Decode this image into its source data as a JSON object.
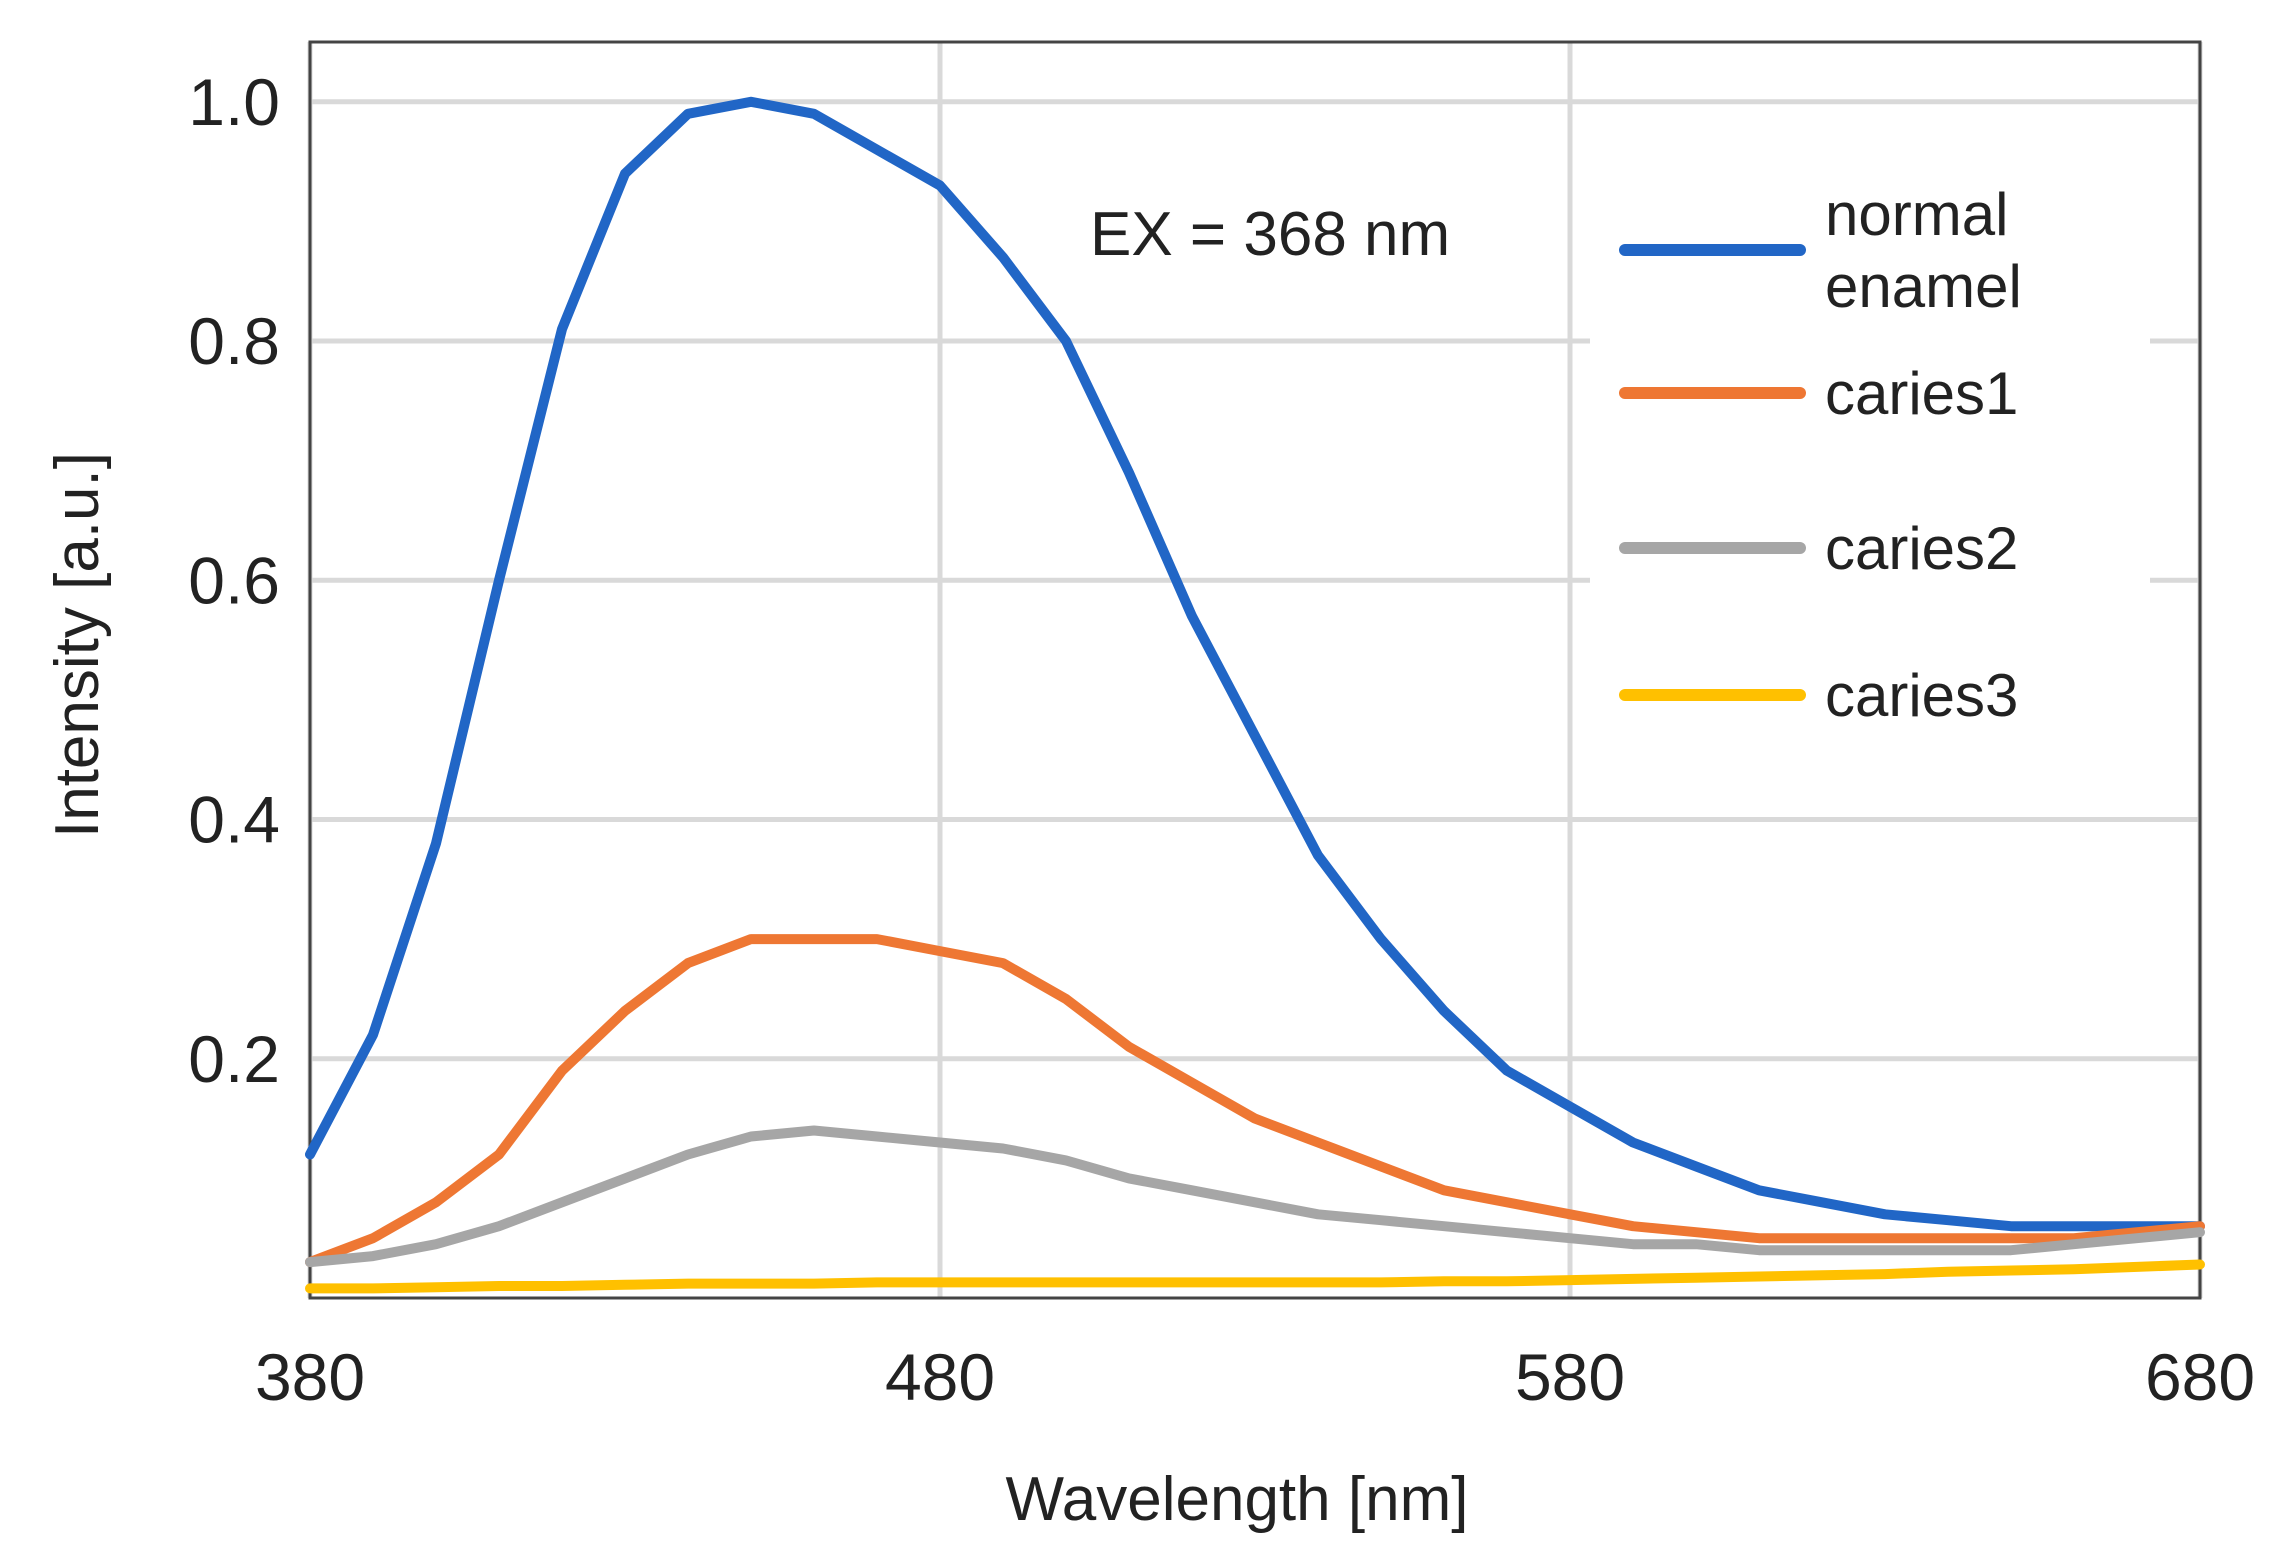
{
  "chart_data": {
    "type": "line",
    "title": "",
    "xlabel": "Wavelength [nm]",
    "ylabel": "Intensity [a.u.]",
    "xlim": [
      380,
      680
    ],
    "ylim": [
      0,
      1.05
    ],
    "xticks": [
      380,
      480,
      580,
      680
    ],
    "xtick_labels": [
      "380",
      "480",
      "580",
      "680"
    ],
    "yticks": [
      0.2,
      0.4,
      0.6,
      0.8,
      1.0
    ],
    "ytick_labels": [
      "0.2",
      "0.4",
      "0.6",
      "0.8",
      "1.0"
    ],
    "grid": true,
    "legend_position": "top-right",
    "annotation": "EX = 368 nm",
    "x": [
      380,
      390,
      400,
      410,
      420,
      430,
      440,
      450,
      460,
      470,
      480,
      490,
      500,
      510,
      520,
      530,
      540,
      550,
      560,
      570,
      580,
      590,
      600,
      610,
      620,
      630,
      640,
      650,
      660,
      670,
      680
    ],
    "series": [
      {
        "name": "normal enamel",
        "label_lines": [
          "normal",
          "enamel"
        ],
        "color": "#2166c6",
        "values": [
          0.12,
          0.22,
          0.38,
          0.6,
          0.81,
          0.94,
          0.99,
          1.0,
          0.99,
          0.96,
          0.93,
          0.87,
          0.8,
          0.69,
          0.57,
          0.47,
          0.37,
          0.3,
          0.24,
          0.19,
          0.16,
          0.13,
          0.11,
          0.09,
          0.08,
          0.07,
          0.065,
          0.06,
          0.06,
          0.06,
          0.06
        ]
      },
      {
        "name": "caries1",
        "label_lines": [
          "caries1"
        ],
        "color": "#ee7733",
        "values": [
          0.03,
          0.05,
          0.08,
          0.12,
          0.19,
          0.24,
          0.28,
          0.3,
          0.3,
          0.3,
          0.29,
          0.28,
          0.25,
          0.21,
          0.18,
          0.15,
          0.13,
          0.11,
          0.09,
          0.08,
          0.07,
          0.06,
          0.055,
          0.05,
          0.05,
          0.05,
          0.05,
          0.05,
          0.05,
          0.055,
          0.06
        ]
      },
      {
        "name": "caries2",
        "label_lines": [
          "caries2"
        ],
        "color": "#a6a6a6",
        "values": [
          0.03,
          0.035,
          0.045,
          0.06,
          0.08,
          0.1,
          0.12,
          0.135,
          0.14,
          0.135,
          0.13,
          0.125,
          0.115,
          0.1,
          0.09,
          0.08,
          0.07,
          0.065,
          0.06,
          0.055,
          0.05,
          0.045,
          0.045,
          0.04,
          0.04,
          0.04,
          0.04,
          0.04,
          0.045,
          0.05,
          0.055
        ]
      },
      {
        "name": "caries3",
        "label_lines": [
          "caries3"
        ],
        "color": "#ffc000",
        "values": [
          0.008,
          0.008,
          0.009,
          0.01,
          0.01,
          0.011,
          0.012,
          0.012,
          0.012,
          0.013,
          0.013,
          0.013,
          0.013,
          0.013,
          0.013,
          0.013,
          0.013,
          0.013,
          0.014,
          0.014,
          0.015,
          0.016,
          0.017,
          0.018,
          0.019,
          0.02,
          0.022,
          0.023,
          0.024,
          0.026,
          0.028
        ]
      }
    ]
  }
}
